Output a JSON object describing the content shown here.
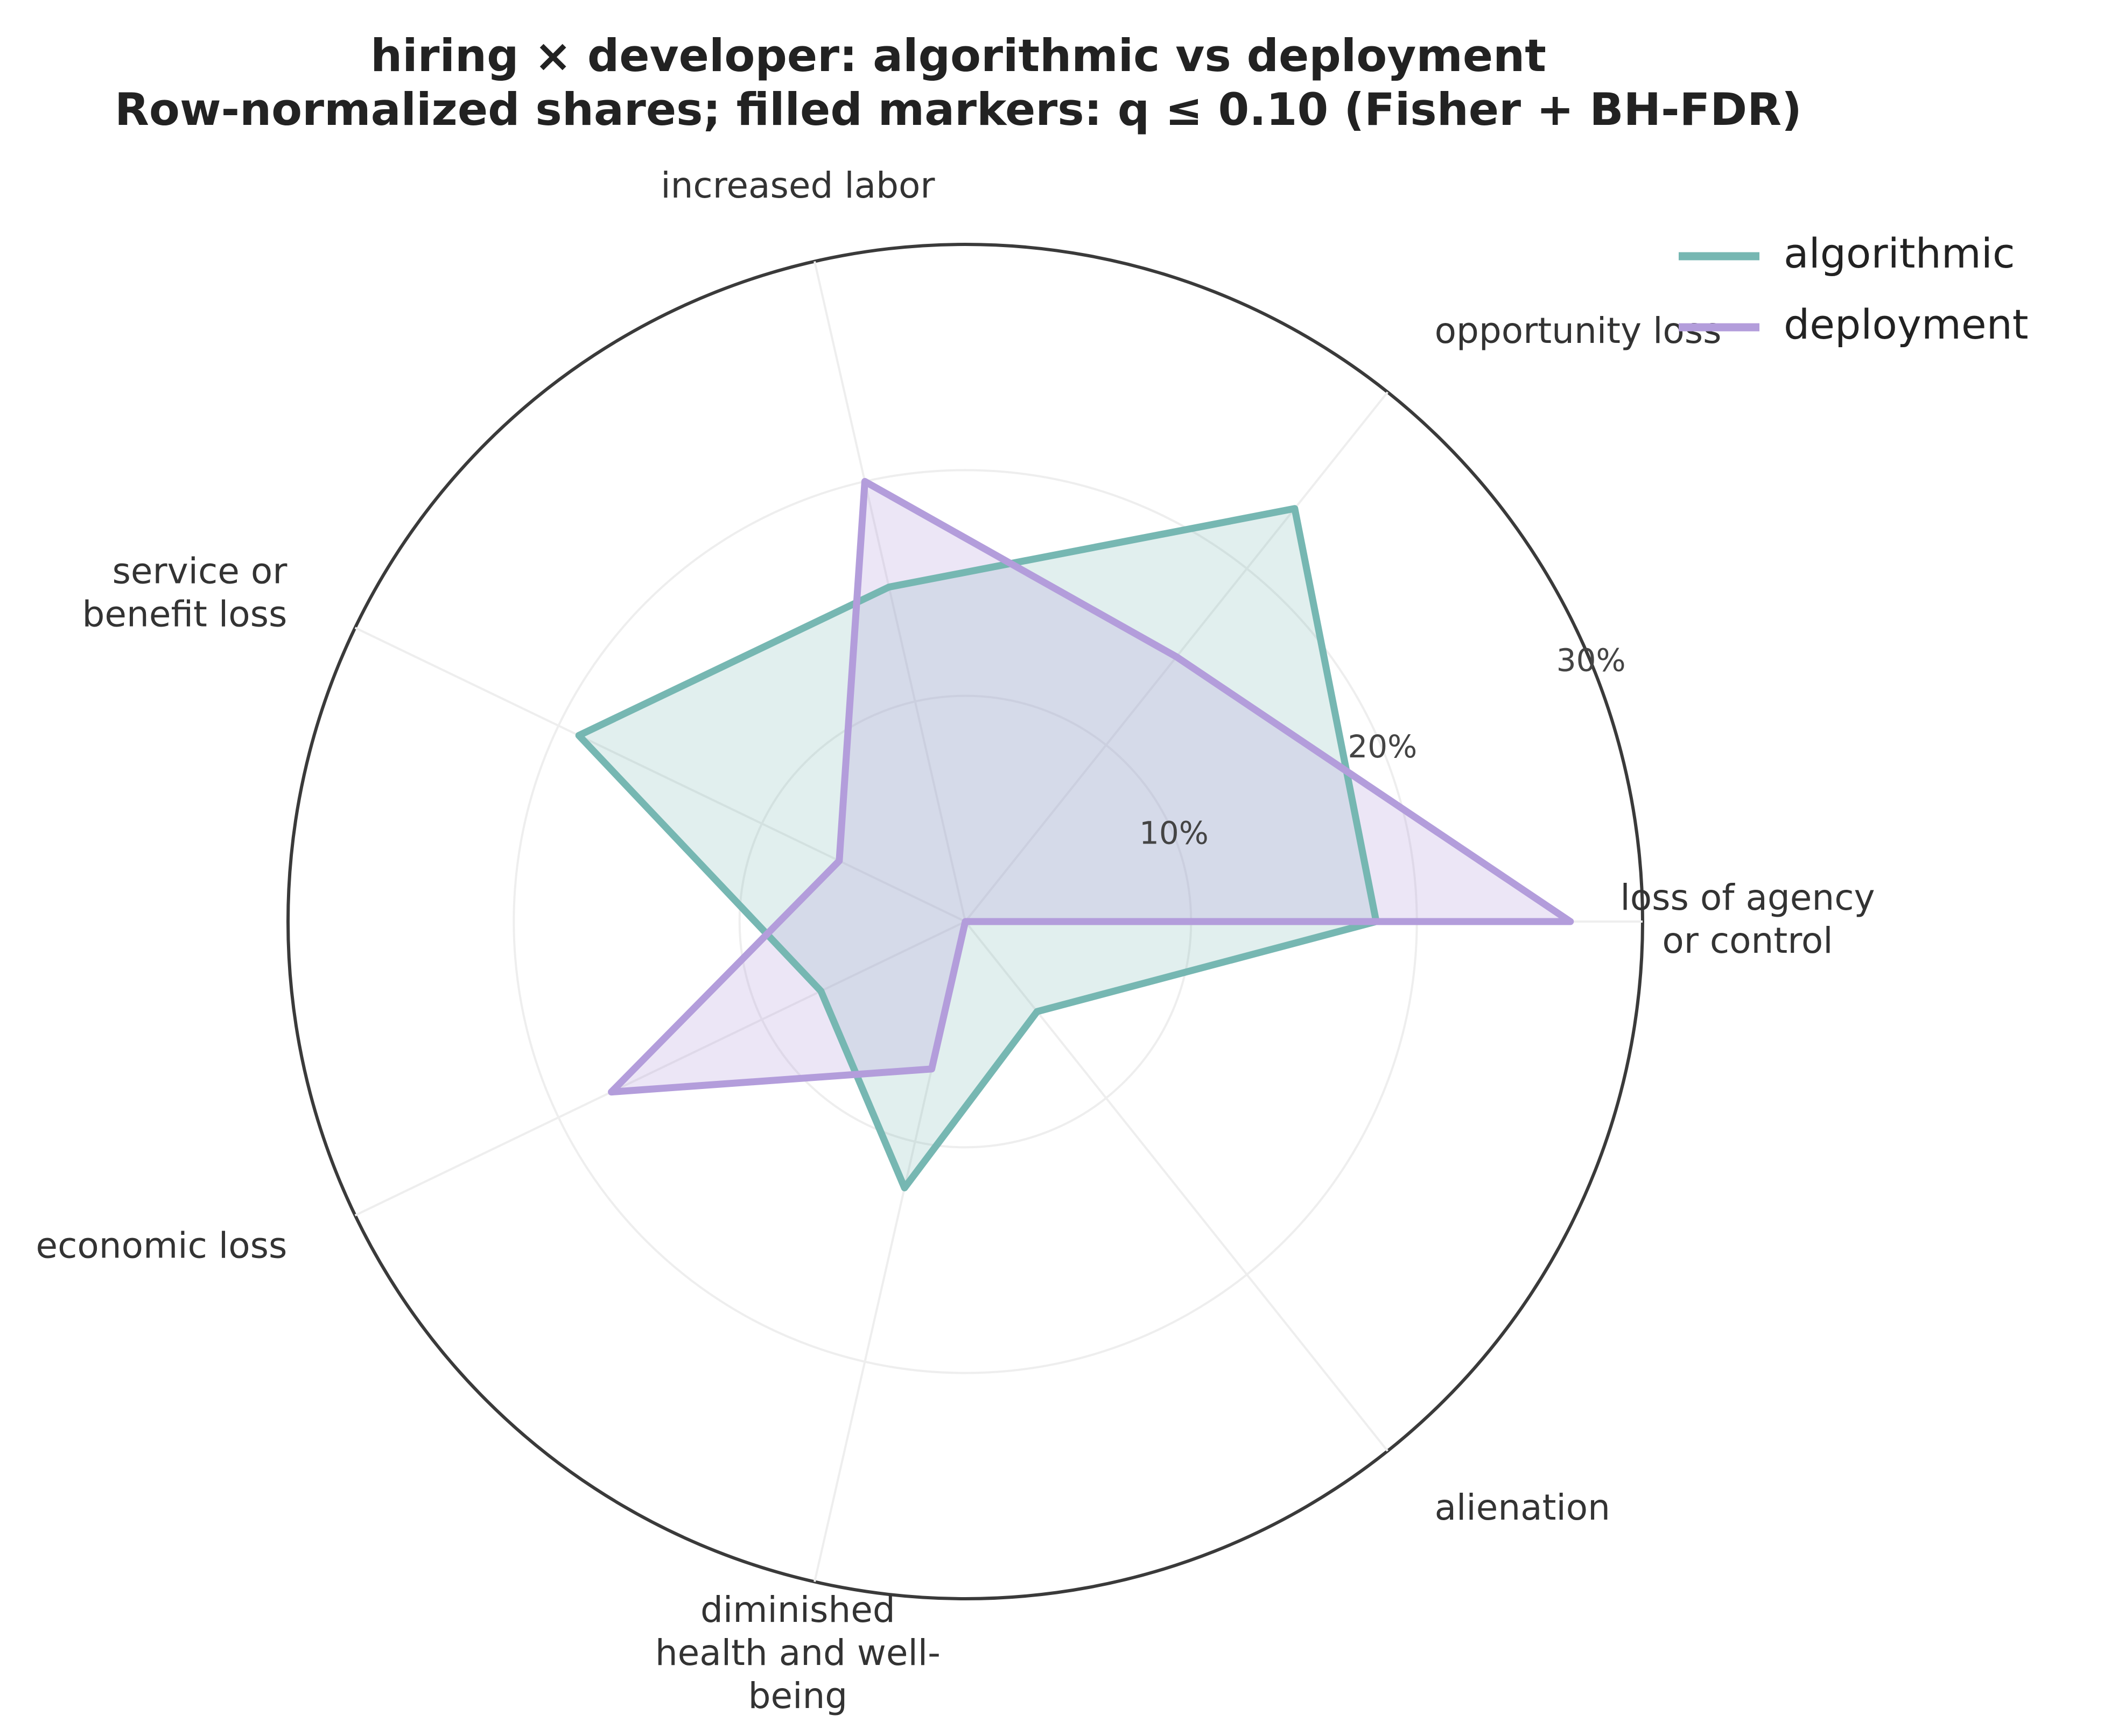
{
  "chart_data": {
    "type": "radar",
    "title": "hiring × developer: algorithmic vs deployment",
    "subtitle": "Row-normalized shares; filled markers: q ≤ 0.10 (Fisher + BH-FDR)",
    "categories": [
      [
        "loss of agency",
        "or control"
      ],
      [
        "opportunity loss"
      ],
      [
        "increased labor"
      ],
      [
        "service or",
        "benefit loss"
      ],
      [
        "economic loss"
      ],
      [
        "diminished",
        "health and well-",
        "being"
      ],
      [
        "alienation"
      ]
    ],
    "radial_ticks": [
      10,
      20,
      30
    ],
    "radial_tick_labels": [
      "10%",
      "20%",
      "30%"
    ],
    "rmax": 30,
    "series": [
      {
        "name": "algorithmic",
        "color": "#76b7b2",
        "values": [
          18.2,
          23.4,
          15.2,
          19.0,
          7.1,
          12.1,
          5.1
        ]
      },
      {
        "name": "deployment",
        "color": "#b39ddb",
        "values": [
          26.8,
          15.0,
          20.0,
          6.2,
          17.4,
          6.7,
          0.0
        ]
      }
    ],
    "legend_position": "top-right"
  },
  "colors": {
    "outer_ring": "#3a3a3a",
    "grid": "#eeeeee"
  }
}
